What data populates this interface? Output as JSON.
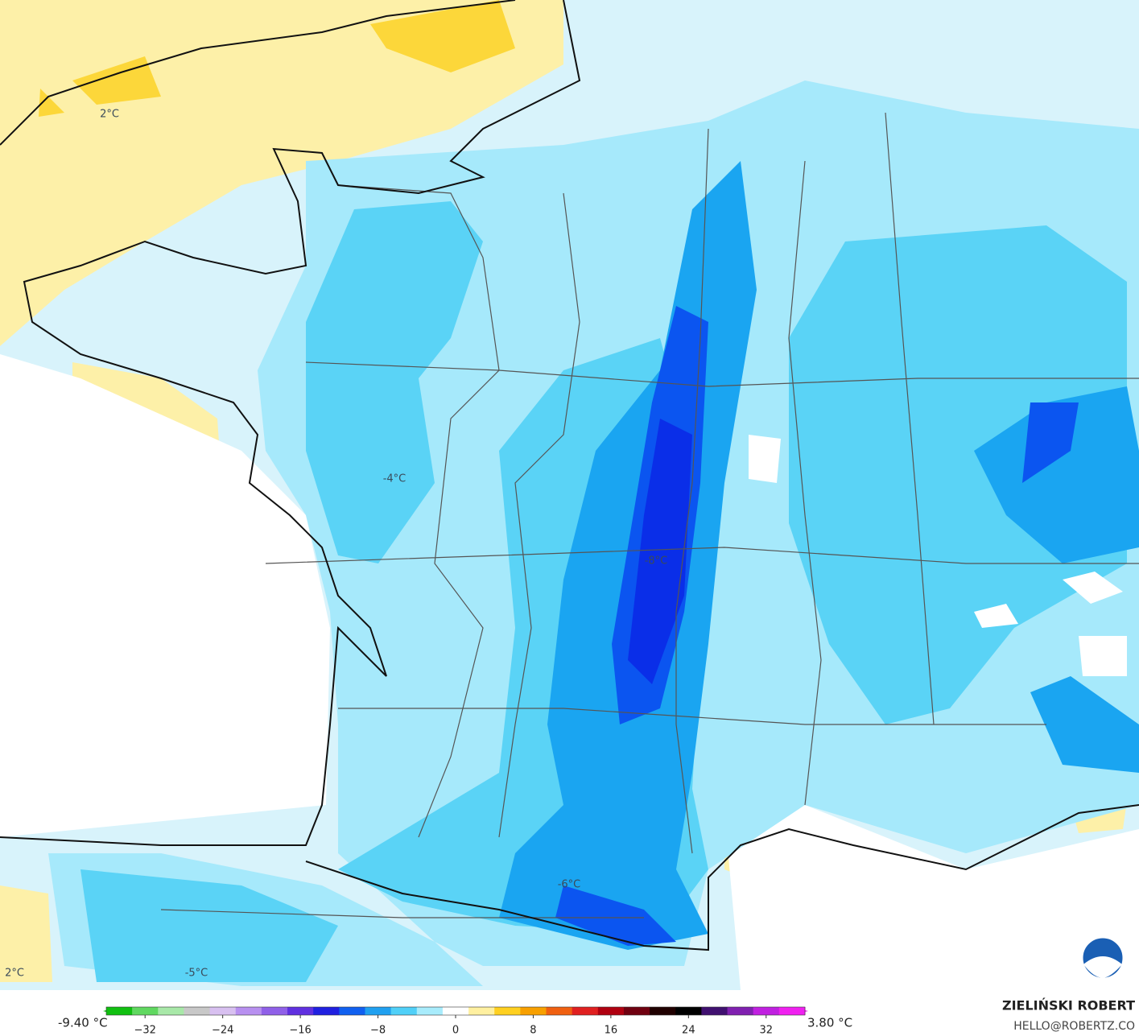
{
  "map": {
    "labels": [
      {
        "text": "2°C"
      },
      {
        "text": "-4°C"
      },
      {
        "text": "-8°C"
      },
      {
        "text": "-6°C"
      },
      {
        "text": "-5°C"
      },
      {
        "text": "2°C"
      }
    ],
    "colorbar": {
      "min_label": "-9.40 °C",
      "max_label": "3.80 °C",
      "range": [
        -36,
        36
      ],
      "ticks": [
        {
          "value": -32,
          "label": "−32"
        },
        {
          "value": -24,
          "label": "−24"
        },
        {
          "value": -16,
          "label": "−16"
        },
        {
          "value": -8,
          "label": "−8"
        },
        0,
        8,
        16,
        24,
        32
      ],
      "colors": [
        "#10c010",
        "#60d860",
        "#a8e8a8",
        "#c8c8c8",
        "#d8c0f0",
        "#b890f0",
        "#9060e8",
        "#6030e0",
        "#2020e0",
        "#1060f0",
        "#20a0f0",
        "#50d0f8",
        "#a8ecfc",
        "#ffffff",
        "#fff0a0",
        "#ffd020",
        "#f8a000",
        "#f06010",
        "#e02020",
        "#b00010",
        "#700010",
        "#200000",
        "#000000",
        "#401070",
        "#8020b0",
        "#c020e0",
        "#f020f0"
      ]
    }
  },
  "credit": {
    "name": "ZIELIŃSKI ROBERT",
    "email": "HELLO@ROBERTZ.CO"
  }
}
